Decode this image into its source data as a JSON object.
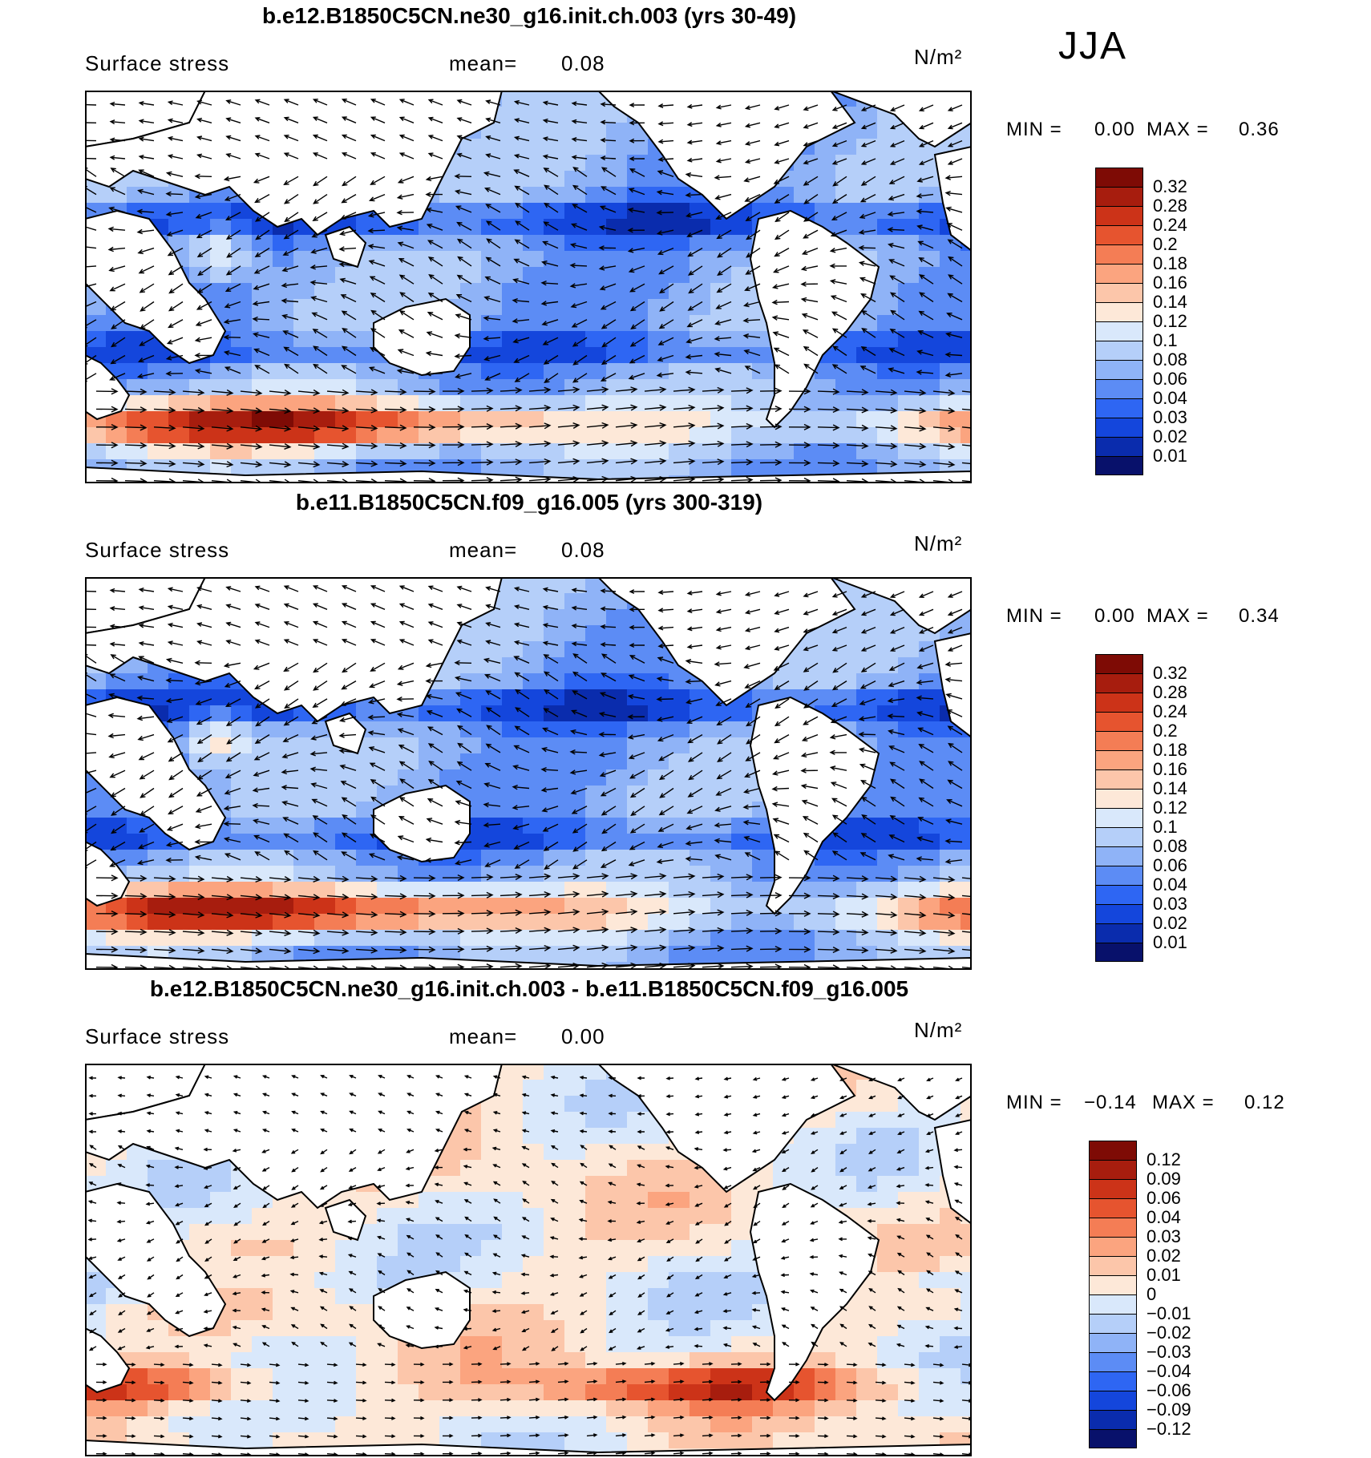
{
  "season": "JJA",
  "colors": {
    "full": [
      "#08116b",
      "#0a2cad",
      "#1446dc",
      "#2e66f3",
      "#5c8cf5",
      "#8fb3f7",
      "#b5cff9",
      "#d9e8fb",
      "#fde8d8",
      "#fcc6aa",
      "#fba47f",
      "#f47d55",
      "#e6542f",
      "#cc3318",
      "#a71d0e",
      "#7e0b05"
    ],
    "diff": [
      "#08116b",
      "#0a2cad",
      "#1446dc",
      "#2e66f3",
      "#5c8cf5",
      "#8fb3f7",
      "#b5cff9",
      "#d9e8fb",
      "#fde8d8",
      "#fcc6aa",
      "#fba47f",
      "#f47d55",
      "#e6542f",
      "#cc3318",
      "#a71d0e",
      "#7e0b05"
    ]
  },
  "chart_data": [
    {
      "type": "heatmap",
      "title": "b.e12.B1850C5CN.ne30_g16.init.ch.003 (yrs 30-49)",
      "variable": "Surface stress",
      "mean_label": "mean=",
      "mean": "0.08",
      "units": "N/m²",
      "min_label": "MIN =",
      "min": "0.00",
      "max_label": "MAX =",
      "max": "0.36",
      "colorbar_levels": [
        "0.32",
        "0.28",
        "0.24",
        "0.2",
        "0.18",
        "0.16",
        "0.14",
        "0.12",
        "0.1",
        "0.08",
        "0.06",
        "0.04",
        "0.03",
        "0.02",
        "0.01"
      ],
      "vectors": true
    },
    {
      "type": "heatmap",
      "title": "b.e11.B1850C5CN.f09_g16.005 (yrs 300-319)",
      "variable": "Surface stress",
      "mean_label": "mean=",
      "mean": "0.08",
      "units": "N/m²",
      "min_label": "MIN =",
      "min": "0.00",
      "max_label": "MAX =",
      "max": "0.34",
      "colorbar_levels": [
        "0.32",
        "0.28",
        "0.24",
        "0.2",
        "0.18",
        "0.16",
        "0.14",
        "0.12",
        "0.1",
        "0.08",
        "0.06",
        "0.04",
        "0.03",
        "0.02",
        "0.01"
      ],
      "vectors": true
    },
    {
      "type": "heatmap",
      "title": "b.e12.B1850C5CN.ne30_g16.init.ch.003 - b.e11.B1850C5CN.f09_g16.005",
      "variable": "Surface stress",
      "mean_label": "mean=",
      "mean": "0.00",
      "units": "N/m²",
      "min_label": "MIN =",
      "min": "−0.14",
      "max_label": "MAX =",
      "max": "0.12",
      "colorbar_levels": [
        "0.12",
        "0.09",
        "0.06",
        "0.04",
        "0.03",
        "0.02",
        "0.01",
        "0",
        "−0.01",
        "−0.02",
        "−0.03",
        "−0.04",
        "−0.06",
        "−0.09",
        "−0.12"
      ],
      "vectors": true
    }
  ]
}
